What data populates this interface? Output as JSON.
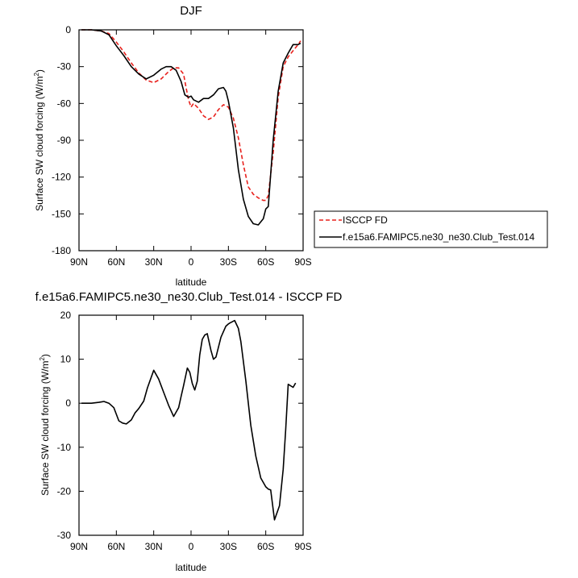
{
  "chart_data": [
    {
      "type": "line",
      "title": "DJF",
      "xlabel": "latitude",
      "ylabel": "Surface SW cloud forcing (W/m",
      "ylabel_sup": "2",
      "ylabel_end": ")",
      "xlim": [
        90,
        -90
      ],
      "ylim": [
        -180,
        0
      ],
      "xticks": [
        90,
        60,
        30,
        0,
        -30,
        -60,
        -90
      ],
      "xtick_labels": [
        "90N",
        "60N",
        "30N",
        "0",
        "30S",
        "60S",
        "90S"
      ],
      "yticks": [
        0,
        -30,
        -60,
        -90,
        -120,
        -150,
        -180
      ],
      "ytick_labels": [
        "0",
        "-30",
        "-60",
        "-90",
        "-120",
        "-150",
        "-180"
      ],
      "legend": "outside-right",
      "series": [
        {
          "name": "ISCCP FD",
          "color": "#e8201c",
          "dash": "dashed",
          "x": [
            88,
            80,
            72,
            66,
            60,
            54,
            48,
            42,
            36,
            30,
            24,
            18,
            14,
            10,
            6,
            4,
            2,
            0,
            -2,
            -6,
            -10,
            -14,
            -18,
            -22,
            -26,
            -30,
            -34,
            -38,
            -42,
            -46,
            -50,
            -54,
            -58,
            -60,
            -62,
            -66,
            -70,
            -74,
            -78,
            -82,
            -86,
            -88
          ],
          "y": [
            0,
            0,
            -1,
            -3,
            -10,
            -18,
            -27,
            -35,
            -41,
            -43,
            -40,
            -34,
            -31,
            -31,
            -36,
            -47,
            -57,
            -63,
            -60,
            -64,
            -70,
            -73,
            -71,
            -65,
            -61,
            -63,
            -72,
            -88,
            -110,
            -128,
            -134,
            -137,
            -139,
            -139,
            -135,
            -100,
            -55,
            -30,
            -22,
            -17,
            -12,
            -9
          ]
        },
        {
          "name": "f.e15a6.FAMIPC5.ne30_ne30.Club_Test.014",
          "color": "#000000",
          "dash": "solid",
          "x": [
            88,
            80,
            72,
            66,
            60,
            54,
            48,
            42,
            36,
            30,
            24,
            20,
            16,
            12,
            8,
            5,
            2,
            0,
            -2,
            -6,
            -10,
            -14,
            -18,
            -22,
            -26,
            -28,
            -30,
            -34,
            -38,
            -42,
            -46,
            -50,
            -54,
            -58,
            -60,
            -62,
            -66,
            -70,
            -74,
            -78,
            -82,
            -86,
            -88
          ],
          "y": [
            0,
            0,
            -1,
            -4,
            -13,
            -21,
            -30,
            -36,
            -40,
            -37,
            -32,
            -30,
            -30,
            -33,
            -42,
            -53,
            -55,
            -54,
            -57,
            -59,
            -56,
            -56,
            -53,
            -48,
            -47,
            -50,
            -58,
            -80,
            -114,
            -138,
            -152,
            -158,
            -159,
            -154,
            -146,
            -144,
            -90,
            -50,
            -27,
            -19,
            -12,
            -12,
            -11
          ]
        }
      ]
    },
    {
      "type": "line",
      "title": "f.e15a6.FAMIPC5.ne30_ne30.Club_Test.014 - ISCCP FD",
      "xlabel": "latitude",
      "ylabel": "Surface SW cloud forcing (W/m",
      "ylabel_sup": "2",
      "ylabel_end": ")",
      "xlim": [
        90,
        -90
      ],
      "ylim": [
        -30,
        20
      ],
      "xticks": [
        90,
        60,
        30,
        0,
        -30,
        -60,
        -90
      ],
      "xtick_labels": [
        "90N",
        "60N",
        "30N",
        "0",
        "30S",
        "60S",
        "90S"
      ],
      "yticks": [
        20,
        10,
        0,
        -10,
        -20,
        -30
      ],
      "ytick_labels": [
        "20",
        "10",
        "0",
        "-10",
        "-20",
        "-30"
      ],
      "series": [
        {
          "color": "#000000",
          "dash": "solid",
          "x": [
            88,
            80,
            74,
            70,
            66,
            62,
            58,
            55,
            52,
            48,
            45,
            42,
            38,
            35,
            30,
            26,
            22,
            18,
            14,
            10,
            8,
            6,
            3,
            1,
            -1,
            -3,
            -5,
            -7,
            -9,
            -11,
            -13,
            -16,
            -18,
            -20,
            -24,
            -28,
            -30,
            -31,
            -33,
            -35,
            -38,
            -40,
            -44,
            -48,
            -52,
            -56,
            -60,
            -62,
            -64,
            -67,
            -71,
            -74,
            -76,
            -78,
            -82,
            -84
          ],
          "y": [
            0,
            0,
            0.2,
            0.4,
            0,
            -1,
            -4,
            -4.5,
            -4.7,
            -3.8,
            -2.2,
            -1.2,
            0.5,
            3.5,
            7.5,
            5.5,
            2.5,
            -0.5,
            -3,
            -1,
            1.5,
            4,
            8,
            7,
            4.5,
            3,
            5,
            11,
            14.5,
            15.5,
            15.8,
            12,
            10,
            10.5,
            15,
            17.5,
            18,
            18.2,
            18.5,
            18.8,
            17,
            14,
            5,
            -5,
            -12,
            -17,
            -19,
            -19.5,
            -19.7,
            -26.5,
            -23.3,
            -15,
            -6,
            4.3,
            3.6,
            4.6
          ]
        }
      ]
    }
  ]
}
